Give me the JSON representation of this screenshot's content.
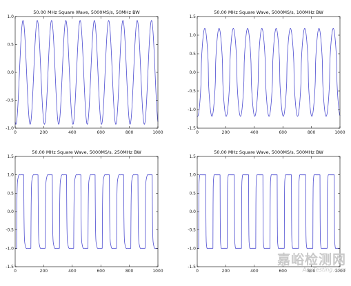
{
  "chart_data": [
    {
      "type": "line",
      "title": "50.00 MHz Square Wave, 5000MS/s, 50MHz BW",
      "xlim": [
        0,
        1000
      ],
      "ylim": [
        -1.0,
        1.0
      ],
      "xticks": [
        0,
        200,
        400,
        600,
        800,
        1000
      ],
      "yticks": [
        -1.0,
        -0.5,
        0.0,
        0.5,
        1.0
      ],
      "ytick_labels": [
        "-1.0",
        "-0.5",
        "0.0",
        "0.5",
        "1.0"
      ],
      "series": [
        {
          "type": "filtered-square",
          "frequency_mhz": 50,
          "sample_rate_msps": 5000,
          "bandwidth_mhz": 50,
          "x": [
            0,
            1000
          ],
          "peak": 0.93
        }
      ],
      "grid": false,
      "color": "#4b4bd0"
    },
    {
      "type": "line",
      "title": "50.00 MHz Square Wave, 5000MS/s, 100MHz BW",
      "xlim": [
        0,
        1000
      ],
      "ylim": [
        -1.5,
        1.5
      ],
      "xticks": [
        0,
        200,
        400,
        600,
        800,
        1000
      ],
      "yticks": [
        -1.5,
        -1.0,
        -0.5,
        0.0,
        0.5,
        1.0,
        1.5
      ],
      "ytick_labels": [
        "-1.5",
        "-1.0",
        "-0.5",
        "0.0",
        "0.5",
        "1.0",
        "1.5"
      ],
      "series": [
        {
          "type": "filtered-square",
          "frequency_mhz": 50,
          "sample_rate_msps": 5000,
          "bandwidth_mhz": 100,
          "x": [
            0,
            1000
          ],
          "peak": 1.18
        }
      ],
      "grid": false,
      "color": "#4b4bd0"
    },
    {
      "type": "line",
      "title": "50.00 MHz Square Wave, 5000MS/s, 250MHz BW",
      "xlim": [
        0,
        1000
      ],
      "ylim": [
        -1.5,
        1.5
      ],
      "xticks": [
        0,
        200,
        400,
        600,
        800,
        1000
      ],
      "yticks": [
        -1.5,
        -1.0,
        -0.5,
        0.0,
        0.5,
        1.0,
        1.5
      ],
      "ytick_labels": [
        "-1.5",
        "-1.0",
        "-0.5",
        "0.0",
        "0.5",
        "1.0",
        "1.5"
      ],
      "series": [
        {
          "type": "filtered-square",
          "frequency_mhz": 50,
          "sample_rate_msps": 5000,
          "bandwidth_mhz": 250,
          "x": [
            0,
            1000
          ],
          "peak": 1.15
        }
      ],
      "grid": false,
      "color": "#4b4bd0"
    },
    {
      "type": "line",
      "title": "50.00 MHz Square Wave, 5000MS/s, 500MHz BW",
      "xlim": [
        0,
        1000
      ],
      "ylim": [
        -1.5,
        1.5
      ],
      "xticks": [
        0,
        200,
        400,
        600,
        800,
        1000
      ],
      "yticks": [
        -1.5,
        -1.0,
        -0.5,
        0.0,
        0.5,
        1.0,
        1.5
      ],
      "ytick_labels": [
        "-1.5",
        "-1.0",
        "-0.5",
        "0.0",
        "0.5",
        "1.0",
        "1.5"
      ],
      "series": [
        {
          "type": "filtered-square",
          "frequency_mhz": 50,
          "sample_rate_msps": 5000,
          "bandwidth_mhz": 500,
          "x": [
            0,
            1000
          ],
          "peak": 1.15
        }
      ],
      "grid": false,
      "color": "#4b4bd0"
    }
  ],
  "watermark": {
    "main": "嘉峪检测网",
    "sub": "AnyTesting.com"
  }
}
